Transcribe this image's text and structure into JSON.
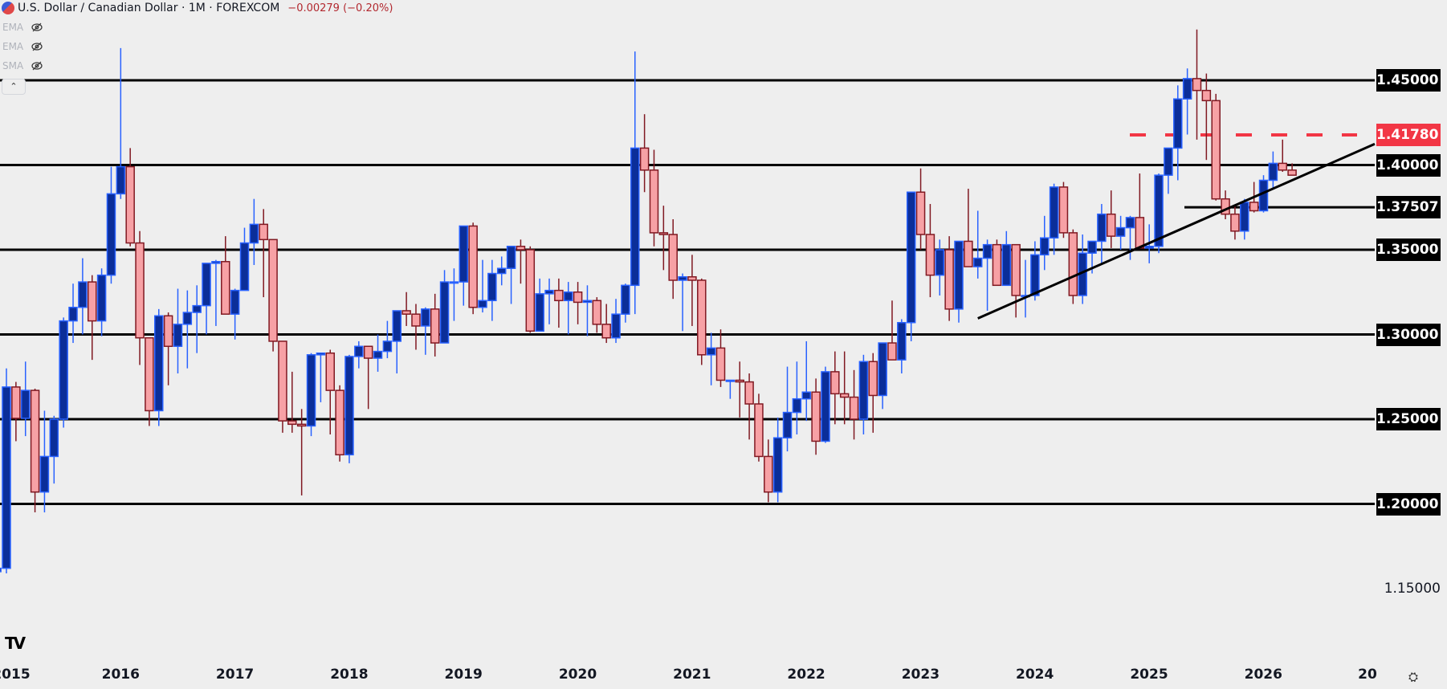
{
  "header": {
    "symbol_title": "U.S. Dollar / Canadian Dollar · 1M · FOREXCOM",
    "change": "−0.00279 (−0.20%)"
  },
  "indicators": [
    {
      "label": "EMA",
      "icon": "eye-off-icon"
    },
    {
      "label": "EMA",
      "icon": "eye-off-icon"
    },
    {
      "label": "SMA",
      "icon": "eye-off-icon"
    }
  ],
  "collapse_icon": "chevron-up-icon",
  "settings_icon": "gear-icon",
  "logo": "TV",
  "colors": {
    "background": "#eeeeee",
    "up_body": "#0b2e99",
    "up_border": "#2962ff",
    "down_body": "#f7a1a5",
    "down_border": "#801922",
    "level_line": "#000000",
    "dashed_level": "#f23645"
  },
  "chart_data": {
    "type": "candlestick",
    "title": "U.S. Dollar / Canadian Dollar · 1M · FOREXCOM",
    "xlabel": "",
    "ylabel": "",
    "ylim": [
      1.125,
      1.475
    ],
    "x_ticks": [
      "2015",
      "2016",
      "2017",
      "2018",
      "2019",
      "2020",
      "2021",
      "2022",
      "2023",
      "2024",
      "2025",
      "2026",
      "20"
    ],
    "y_ticks": [
      "1.45000",
      "1.40000",
      "1.35000",
      "1.30000",
      "1.25000",
      "1.20000",
      "1.15000"
    ],
    "horizontal_levels": [
      {
        "price": 1.45,
        "label": "1.45000",
        "style": "solid",
        "color": "#000000"
      },
      {
        "price": 1.4178,
        "label": "1.41780",
        "style": "dashed",
        "color": "#f23645"
      },
      {
        "price": 1.4,
        "label": "1.40000",
        "style": "solid",
        "color": "#000000"
      },
      {
        "price": 1.37507,
        "label": "1.37507",
        "style": "solid",
        "color": "#000000"
      },
      {
        "price": 1.35,
        "label": "1.35000",
        "style": "solid",
        "color": "#000000"
      },
      {
        "price": 1.3,
        "label": "1.30000",
        "style": "solid",
        "color": "#000000"
      },
      {
        "price": 1.25,
        "label": "1.25000",
        "style": "solid",
        "color": "#000000"
      },
      {
        "price": 1.2,
        "label": "1.20000",
        "style": "solid",
        "color": "#000000"
      }
    ],
    "trendline": {
      "from": {
        "date": "2023-07",
        "price": 1.3095
      },
      "to": {
        "date": "2026-04",
        "price": 1.391
      }
    },
    "start_month": "2014-12",
    "candles": [
      [
        1.16,
        1.173,
        1.145,
        1.162
      ],
      [
        1.162,
        1.28,
        1.159,
        1.269
      ],
      [
        1.269,
        1.272,
        1.237,
        1.2505
      ],
      [
        1.2505,
        1.284,
        1.24,
        1.267
      ],
      [
        1.267,
        1.268,
        1.195,
        1.207
      ],
      [
        1.207,
        1.255,
        1.195,
        1.228
      ],
      [
        1.228,
        1.252,
        1.212,
        1.25
      ],
      [
        1.25,
        1.31,
        1.245,
        1.308
      ],
      [
        1.308,
        1.33,
        1.295,
        1.316
      ],
      [
        1.316,
        1.345,
        1.3,
        1.331
      ],
      [
        1.331,
        1.335,
        1.285,
        1.308
      ],
      [
        1.308,
        1.339,
        1.299,
        1.335
      ],
      [
        1.335,
        1.399,
        1.33,
        1.383
      ],
      [
        1.383,
        1.469,
        1.38,
        1.399
      ],
      [
        1.399,
        1.41,
        1.352,
        1.354
      ],
      [
        1.354,
        1.361,
        1.282,
        1.298
      ],
      [
        1.298,
        1.283,
        1.246,
        1.255
      ],
      [
        1.255,
        1.315,
        1.246,
        1.311
      ],
      [
        1.311,
        1.313,
        1.27,
        1.293
      ],
      [
        1.293,
        1.327,
        1.277,
        1.306
      ],
      [
        1.306,
        1.326,
        1.28,
        1.313
      ],
      [
        1.313,
        1.329,
        1.289,
        1.317
      ],
      [
        1.317,
        1.341,
        1.3,
        1.342
      ],
      [
        1.342,
        1.344,
        1.305,
        1.343
      ],
      [
        1.343,
        1.358,
        1.32,
        1.312
      ],
      [
        1.312,
        1.327,
        1.297,
        1.326
      ],
      [
        1.326,
        1.363,
        1.326,
        1.354
      ],
      [
        1.354,
        1.38,
        1.341,
        1.365
      ],
      [
        1.365,
        1.374,
        1.322,
        1.356
      ],
      [
        1.356,
        1.354,
        1.29,
        1.296
      ],
      [
        1.296,
        1.294,
        1.242,
        1.249
      ],
      [
        1.249,
        1.278,
        1.242,
        1.247
      ],
      [
        1.247,
        1.256,
        1.205,
        1.246
      ],
      [
        1.246,
        1.289,
        1.24,
        1.288
      ],
      [
        1.288,
        1.289,
        1.26,
        1.289
      ],
      [
        1.289,
        1.291,
        1.241,
        1.267
      ],
      [
        1.267,
        1.27,
        1.225,
        1.229
      ],
      [
        1.229,
        1.288,
        1.224,
        1.287
      ],
      [
        1.287,
        1.296,
        1.28,
        1.293
      ],
      [
        1.293,
        1.292,
        1.256,
        1.286
      ],
      [
        1.286,
        1.3,
        1.278,
        1.29
      ],
      [
        1.29,
        1.308,
        1.286,
        1.296
      ],
      [
        1.296,
        1.314,
        1.277,
        1.314
      ],
      [
        1.314,
        1.325,
        1.305,
        1.312
      ],
      [
        1.312,
        1.318,
        1.291,
        1.305
      ],
      [
        1.305,
        1.316,
        1.288,
        1.315
      ],
      [
        1.315,
        1.324,
        1.287,
        1.295
      ],
      [
        1.295,
        1.338,
        1.295,
        1.331
      ],
      [
        1.331,
        1.339,
        1.308,
        1.331
      ],
      [
        1.331,
        1.364,
        1.317,
        1.364
      ],
      [
        1.364,
        1.366,
        1.312,
        1.316
      ],
      [
        1.316,
        1.344,
        1.313,
        1.32
      ],
      [
        1.32,
        1.344,
        1.308,
        1.336
      ],
      [
        1.336,
        1.346,
        1.329,
        1.339
      ],
      [
        1.339,
        1.352,
        1.318,
        1.352
      ],
      [
        1.352,
        1.356,
        1.33,
        1.35
      ],
      [
        1.35,
        1.352,
        1.301,
        1.302
      ],
      [
        1.302,
        1.333,
        1.303,
        1.324
      ],
      [
        1.324,
        1.333,
        1.306,
        1.326
      ],
      [
        1.326,
        1.333,
        1.304,
        1.32
      ],
      [
        1.32,
        1.331,
        1.3,
        1.325
      ],
      [
        1.325,
        1.331,
        1.306,
        1.319
      ],
      [
        1.319,
        1.329,
        1.299,
        1.32
      ],
      [
        1.32,
        1.322,
        1.301,
        1.306
      ],
      [
        1.306,
        1.318,
        1.295,
        1.298
      ],
      [
        1.298,
        1.321,
        1.295,
        1.312
      ],
      [
        1.312,
        1.33,
        1.307,
        1.329
      ],
      [
        1.329,
        1.467,
        1.312,
        1.41
      ],
      [
        1.41,
        1.43,
        1.384,
        1.397
      ],
      [
        1.397,
        1.409,
        1.352,
        1.36
      ],
      [
        1.36,
        1.376,
        1.338,
        1.359
      ],
      [
        1.359,
        1.368,
        1.321,
        1.332
      ],
      [
        1.332,
        1.336,
        1.302,
        1.334
      ],
      [
        1.334,
        1.347,
        1.305,
        1.332
      ],
      [
        1.332,
        1.333,
        1.282,
        1.288
      ],
      [
        1.288,
        1.301,
        1.27,
        1.292
      ],
      [
        1.292,
        1.303,
        1.269,
        1.273
      ],
      [
        1.273,
        1.273,
        1.262,
        1.273
      ],
      [
        1.273,
        1.284,
        1.251,
        1.272
      ],
      [
        1.272,
        1.277,
        1.238,
        1.259
      ],
      [
        1.259,
        1.265,
        1.225,
        1.228
      ],
      [
        1.228,
        1.238,
        1.201,
        1.207
      ],
      [
        1.207,
        1.251,
        1.201,
        1.239
      ],
      [
        1.239,
        1.281,
        1.231,
        1.254
      ],
      [
        1.254,
        1.284,
        1.241,
        1.262
      ],
      [
        1.262,
        1.296,
        1.249,
        1.266
      ],
      [
        1.266,
        1.274,
        1.229,
        1.237
      ],
      [
        1.237,
        1.281,
        1.236,
        1.278
      ],
      [
        1.278,
        1.29,
        1.247,
        1.265
      ],
      [
        1.265,
        1.29,
        1.247,
        1.263
      ],
      [
        1.263,
        1.279,
        1.238,
        1.25
      ],
      [
        1.25,
        1.288,
        1.241,
        1.284
      ],
      [
        1.284,
        1.289,
        1.242,
        1.264
      ],
      [
        1.264,
        1.295,
        1.256,
        1.295
      ],
      [
        1.295,
        1.32,
        1.285,
        1.285
      ],
      [
        1.285,
        1.309,
        1.277,
        1.307
      ],
      [
        1.307,
        1.384,
        1.296,
        1.384
      ],
      [
        1.384,
        1.398,
        1.35,
        1.359
      ],
      [
        1.359,
        1.377,
        1.322,
        1.335
      ],
      [
        1.335,
        1.356,
        1.323,
        1.35
      ],
      [
        1.35,
        1.358,
        1.308,
        1.315
      ],
      [
        1.315,
        1.355,
        1.307,
        1.355
      ],
      [
        1.355,
        1.386,
        1.349,
        1.34
      ],
      [
        1.34,
        1.373,
        1.333,
        1.345
      ],
      [
        1.345,
        1.356,
        1.314,
        1.353
      ],
      [
        1.353,
        1.356,
        1.33,
        1.329
      ],
      [
        1.329,
        1.361,
        1.329,
        1.353
      ],
      [
        1.353,
        1.348,
        1.31,
        1.323
      ],
      [
        1.323,
        1.344,
        1.31,
        1.323
      ],
      [
        1.323,
        1.355,
        1.32,
        1.347
      ],
      [
        1.347,
        1.37,
        1.338,
        1.357
      ],
      [
        1.357,
        1.389,
        1.347,
        1.387
      ],
      [
        1.387,
        1.39,
        1.357,
        1.36
      ],
      [
        1.36,
        1.362,
        1.318,
        1.323
      ],
      [
        1.323,
        1.359,
        1.318,
        1.348
      ],
      [
        1.348,
        1.355,
        1.336,
        1.355
      ],
      [
        1.355,
        1.377,
        1.342,
        1.371
      ],
      [
        1.371,
        1.385,
        1.351,
        1.358
      ],
      [
        1.358,
        1.37,
        1.35,
        1.363
      ],
      [
        1.363,
        1.37,
        1.344,
        1.369
      ],
      [
        1.369,
        1.395,
        1.357,
        1.351
      ],
      [
        1.351,
        1.365,
        1.342,
        1.352
      ],
      [
        1.352,
        1.395,
        1.348,
        1.394
      ],
      [
        1.394,
        1.41,
        1.383,
        1.41
      ],
      [
        1.41,
        1.447,
        1.391,
        1.439
      ],
      [
        1.439,
        1.457,
        1.418,
        1.451
      ],
      [
        1.451,
        1.48,
        1.415,
        1.444
      ],
      [
        1.444,
        1.454,
        1.403,
        1.438
      ],
      [
        1.438,
        1.442,
        1.379,
        1.38
      ],
      [
        1.38,
        1.385,
        1.368,
        1.371
      ],
      [
        1.371,
        1.376,
        1.356,
        1.361
      ],
      [
        1.361,
        1.38,
        1.356,
        1.378
      ],
      [
        1.378,
        1.39,
        1.372,
        1.373
      ],
      [
        1.373,
        1.394,
        1.372,
        1.391
      ],
      [
        1.391,
        1.408,
        1.386,
        1.401
      ],
      [
        1.401,
        1.415,
        1.396,
        1.397
      ],
      [
        1.397,
        1.401,
        1.394,
        1.394
      ]
    ]
  }
}
